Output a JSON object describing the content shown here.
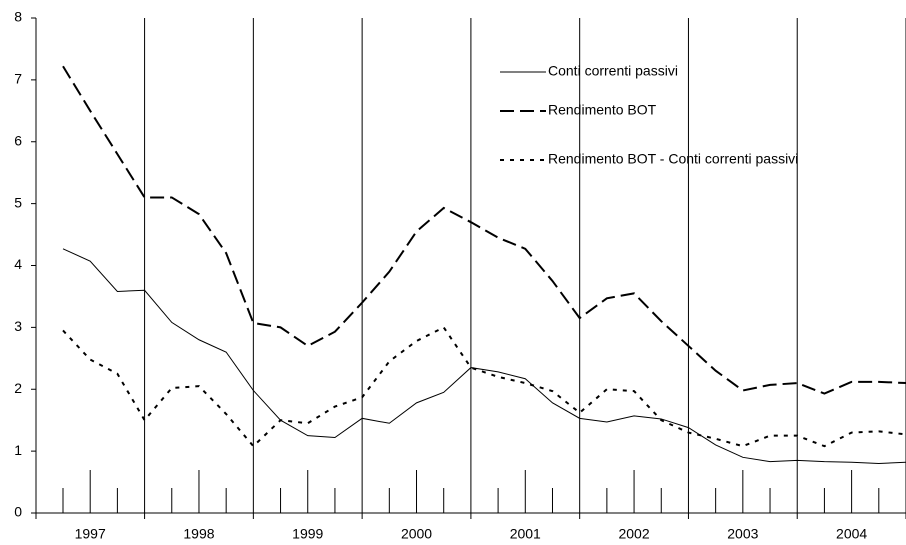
{
  "chart_data": {
    "type": "line",
    "categories": [
      null,
      "1997",
      null,
      null,
      null,
      "1998",
      null,
      null,
      null,
      "1999",
      null,
      null,
      null,
      "2000",
      null,
      null,
      null,
      "2001",
      null,
      null,
      null,
      "2002",
      null,
      null,
      null,
      "2003",
      null,
      null,
      null,
      "2004",
      null,
      null
    ],
    "series": [
      {
        "name": "Conti correnti passivi",
        "color": "#000000",
        "style": "solid",
        "values": [
          4.27,
          4.07,
          3.58,
          3.6,
          3.08,
          2.8,
          2.6,
          1.98,
          1.5,
          1.25,
          1.22,
          1.53,
          1.45,
          1.78,
          1.95,
          2.35,
          2.28,
          2.17,
          1.78,
          1.53,
          1.47,
          1.57,
          1.52,
          1.38,
          1.1,
          0.9,
          0.83,
          0.85,
          0.83,
          0.82,
          0.8,
          0.82
        ]
      },
      {
        "name": "Rendimento BOT",
        "color": "#000000",
        "style": "dashed",
        "values": [
          7.22,
          6.5,
          5.8,
          5.1,
          5.1,
          4.83,
          4.2,
          3.07,
          3.0,
          2.7,
          2.93,
          3.4,
          3.9,
          4.55,
          4.93,
          4.7,
          4.45,
          4.27,
          3.75,
          3.15,
          3.47,
          3.55,
          3.1,
          2.7,
          2.3,
          1.98,
          2.07,
          2.1,
          1.93,
          2.12,
          2.12,
          2.1
        ]
      },
      {
        "name": "Rendimento BOT - Conti correnti passivi",
        "color": "#000000",
        "style": "dotted",
        "values": [
          2.95,
          2.48,
          2.25,
          1.5,
          2.02,
          2.05,
          1.6,
          1.08,
          1.5,
          1.45,
          1.72,
          1.87,
          2.45,
          2.78,
          3.0,
          2.35,
          2.2,
          2.1,
          1.97,
          1.62,
          2.0,
          1.97,
          1.5,
          1.3,
          1.2,
          1.08,
          1.25,
          1.25,
          1.08,
          1.3,
          1.32,
          1.27
        ]
      }
    ],
    "ylim": [
      0,
      8
    ],
    "yticks": [
      0,
      1,
      2,
      3,
      4,
      5,
      6,
      7,
      8
    ]
  }
}
